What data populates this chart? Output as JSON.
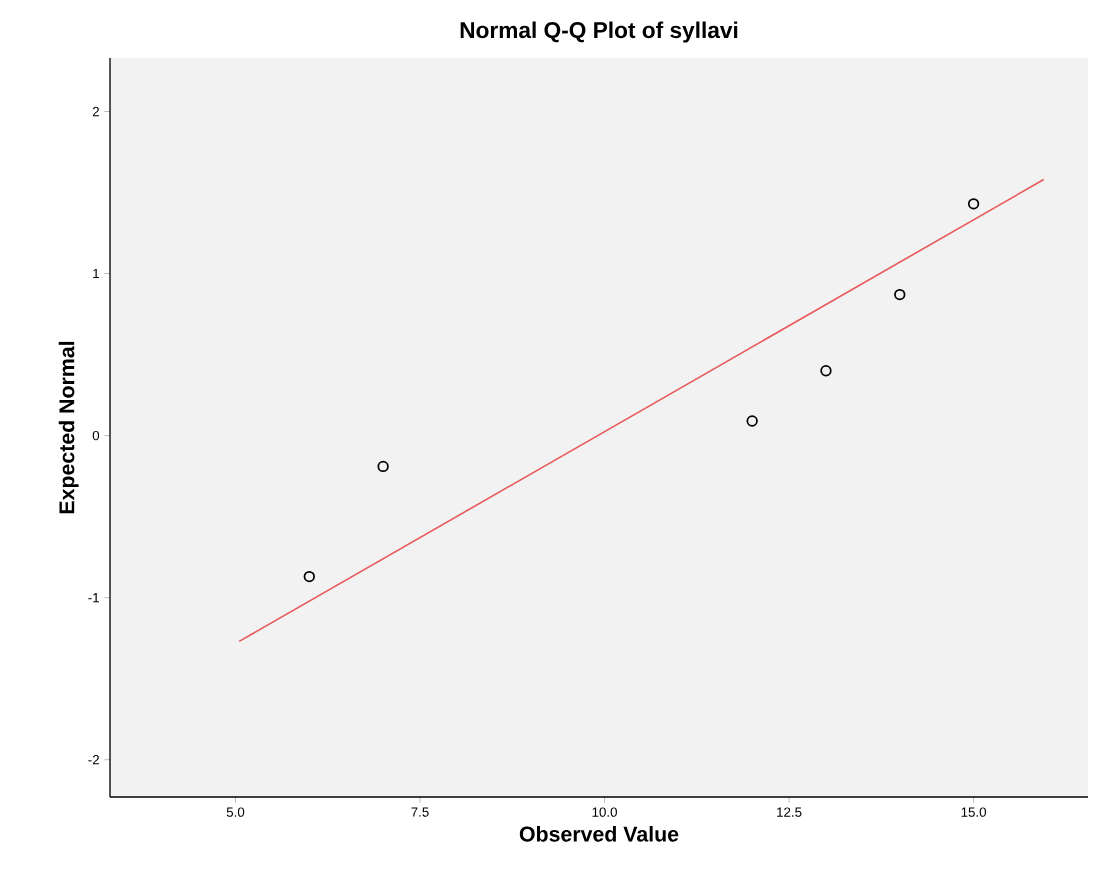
{
  "chart_data": {
    "type": "scatter",
    "title": "Normal Q-Q Plot of syllavi",
    "xlabel": "Observed Value",
    "ylabel": "Expected Normal",
    "xlim": [
      3.3,
      16.55
    ],
    "ylim": [
      -2.23,
      2.33
    ],
    "xticks": [
      {
        "value": 5,
        "label": "5.0"
      },
      {
        "value": 7.5,
        "label": "7.5"
      },
      {
        "value": 10,
        "label": "10.0"
      },
      {
        "value": 12.5,
        "label": "12.5"
      },
      {
        "value": 15,
        "label": "15.0"
      }
    ],
    "yticks": [
      -2,
      -1,
      0,
      1,
      2
    ],
    "grid": false,
    "series": [
      {
        "color": "#000000",
        "marker": "circle",
        "x": [
          6,
          7,
          12,
          13,
          14,
          15
        ],
        "values": [
          -0.87,
          -0.19,
          0.09,
          0.4,
          0.87,
          1.43
        ]
      },
      {
        "type": "line",
        "color": "#e8585a",
        "marker": "none",
        "line_style": "solid",
        "x": [
          5.05,
          15.95
        ],
        "values": [
          -1.27,
          1.58
        ]
      }
    ]
  }
}
